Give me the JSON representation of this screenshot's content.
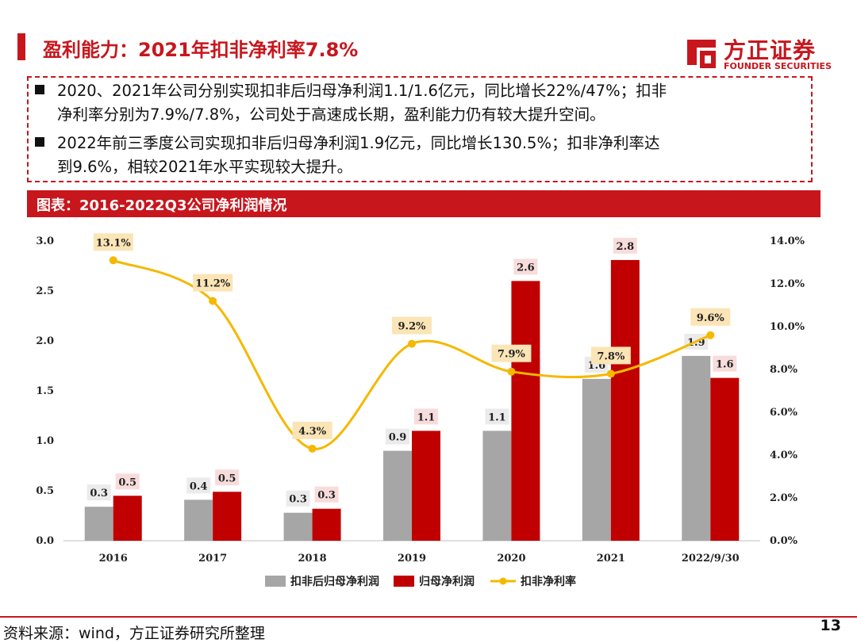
{
  "title": "盈利能力：2021年扣非净利率7.8%",
  "logo": {
    "cn": "方正证券",
    "en": "FOUNDER SECURITIES"
  },
  "bullets": [
    {
      "line1": "2020、2021年公司分别实现扣非后归母净利润1.1/1.6亿元，同比增长22%/47%；扣非",
      "line2": "净利率分别为7.9%/7.8%，公司处于高速成长期，盈利能力仍有较大提升空间。"
    },
    {
      "line1": "2022年前三季度公司实现扣非后归母净利润1.9亿元，同比增长130.5%；扣非净利率达",
      "line2": "到9.6%，相较2021年水平实现较大提升。"
    }
  ],
  "chart_header": "图表：2016-2022Q3公司净利润情况",
  "source": "资料来源：wind，方正证券研究所整理",
  "page_number": "13",
  "colors": {
    "brand_red": "#c8161d",
    "bar_gray": "#a6a6a6",
    "bar_red": "#c00000",
    "line_gold": "#f5b800",
    "label_bg": "#fbe5b6"
  },
  "chart_data": {
    "type": "bar",
    "title": "",
    "categories": [
      "2016",
      "2017",
      "2018",
      "2019",
      "2020",
      "2021",
      "2022/9/30"
    ],
    "series": [
      {
        "name": "扣非后归母净利润",
        "type": "bar",
        "axis": "left",
        "values": [
          0.34,
          0.41,
          0.28,
          0.9,
          1.1,
          1.62,
          1.85
        ],
        "labels": [
          "0.3",
          "0.4",
          "0.3",
          "0.9",
          "1.1",
          "1.6",
          "1.9"
        ]
      },
      {
        "name": "归母净利润",
        "type": "bar",
        "axis": "left",
        "values": [
          0.45,
          0.49,
          0.32,
          1.1,
          2.6,
          2.81,
          1.63
        ],
        "labels": [
          "0.5",
          "0.5",
          "0.3",
          "1.1",
          "2.6",
          "2.8",
          "1.6"
        ]
      },
      {
        "name": "扣非净利率",
        "type": "line",
        "axis": "right",
        "values": [
          13.1,
          11.2,
          4.3,
          9.2,
          7.9,
          7.8,
          9.6
        ],
        "labels": [
          "13.1%",
          "11.2%",
          "4.3%",
          "9.2%",
          "7.9%",
          "7.8%",
          "9.6%"
        ]
      }
    ],
    "ylim": [
      0,
      3.0
    ],
    "yticks": [
      "0.0",
      "0.5",
      "1.0",
      "1.5",
      "2.0",
      "2.5",
      "3.0"
    ],
    "y2lim": [
      0,
      14
    ],
    "y2ticks": [
      "0.0%",
      "2.0%",
      "4.0%",
      "6.0%",
      "8.0%",
      "10.0%",
      "12.0%",
      "14.0%"
    ],
    "legend_position": "bottom"
  }
}
